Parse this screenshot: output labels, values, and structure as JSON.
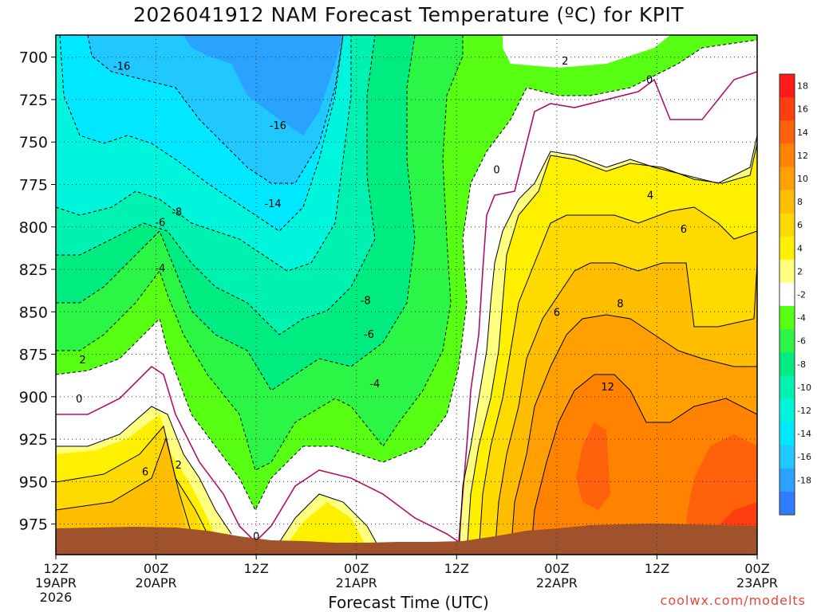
{
  "header": {
    "title": "2026041912 NAM Forecast Temperature (ºC) for KPIT"
  },
  "footer": {
    "xlabel": "Forecast Time (UTC)",
    "credit": "coolwx.com/modelts"
  },
  "chart_data": {
    "type": "heatmap",
    "title": "2026041912 NAM Forecast Temperature (ºC) for KPIT",
    "xlabel": "Forecast Time (UTC)",
    "ylabel": "",
    "x_ticks": [
      {
        "hour": 0,
        "label": [
          "12Z",
          "19APR",
          "2026"
        ]
      },
      {
        "hour": 12,
        "label": [
          "00Z",
          "20APR"
        ]
      },
      {
        "hour": 24,
        "label": [
          "12Z"
        ]
      },
      {
        "hour": 36,
        "label": [
          "00Z",
          "21APR"
        ]
      },
      {
        "hour": 48,
        "label": [
          "12Z"
        ]
      },
      {
        "hour": 60,
        "label": [
          "00Z",
          "22APR"
        ]
      },
      {
        "hour": 72,
        "label": [
          "12Z"
        ]
      },
      {
        "hour": 84,
        "label": [
          "00Z",
          "23APR"
        ]
      }
    ],
    "xlim_hours": [
      0,
      84
    ],
    "y_ticks": [
      700,
      725,
      750,
      775,
      800,
      825,
      850,
      875,
      900,
      925,
      950,
      975
    ],
    "ylim_hPa": [
      687,
      993
    ],
    "y_reversed": true,
    "grid": "dotted",
    "colorbar": {
      "placement": "right",
      "labels": [
        "18",
        "16",
        "14",
        "12",
        "10",
        "8",
        "6",
        "4",
        "2",
        "-2",
        "-4",
        "-6",
        "-8",
        "-10",
        "-12",
        "-14",
        "-16",
        "-18"
      ],
      "colors": [
        "#ff1a1a",
        "#ff3e10",
        "#ff620a",
        "#ff8200",
        "#ffa000",
        "#ffbe00",
        "#ffda00",
        "#fff000",
        "#ffff80",
        "#ffffff",
        "#57ff12",
        "#2bf545",
        "#00ec80",
        "#00f2b0",
        "#00f6dc",
        "#00e8ff",
        "#20c8ff",
        "#2aa2ff",
        "#2e7cff"
      ]
    },
    "contour_labels": [
      {
        "text": "-16",
        "hour": 7.9,
        "hPa": 705
      },
      {
        "text": "-16",
        "hour": 26.6,
        "hPa": 740
      },
      {
        "text": "-14",
        "hour": 26.0,
        "hPa": 786
      },
      {
        "text": "-8",
        "hour": 14.5,
        "hPa": 791
      },
      {
        "text": "-6",
        "hour": 12.5,
        "hPa": 797
      },
      {
        "text": "-4",
        "hour": 12.5,
        "hPa": 824
      },
      {
        "text": "-8",
        "hour": 37.1,
        "hPa": 843
      },
      {
        "text": "-6",
        "hour": 37.5,
        "hPa": 863
      },
      {
        "text": "-4",
        "hour": 38.2,
        "hPa": 892
      },
      {
        "text": "2",
        "hour": 3.2,
        "hPa": 878
      },
      {
        "text": "0",
        "hour": 2.8,
        "hPa": 901
      },
      {
        "text": "6",
        "hour": 10.7,
        "hPa": 944
      },
      {
        "text": "2",
        "hour": 14.7,
        "hPa": 940
      },
      {
        "text": "0",
        "hour": 24.0,
        "hPa": 982
      },
      {
        "text": "2",
        "hour": 61.0,
        "hPa": 702
      },
      {
        "text": "0",
        "hour": 71.1,
        "hPa": 713
      },
      {
        "text": "0",
        "hour": 52.8,
        "hPa": 766
      },
      {
        "text": "4",
        "hour": 71.2,
        "hPa": 781
      },
      {
        "text": "6",
        "hour": 75.2,
        "hPa": 801
      },
      {
        "text": "8",
        "hour": 67.6,
        "hPa": 845
      },
      {
        "text": "6",
        "hour": 60.0,
        "hPa": 850
      },
      {
        "text": "12",
        "hour": 66.1,
        "hPa": 894
      }
    ],
    "regions_desc": "Cold air aloft (-18 to -6 ºC) over 19-21 APR, warming below 850 hPa; warm air (2-14 ºC) from 21APR 18Z to 23APR below 750 hPa; terrain below ~975 hPa"
  }
}
